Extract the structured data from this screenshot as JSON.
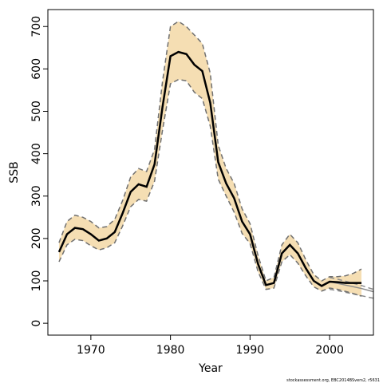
{
  "chart_data": {
    "type": "line",
    "xlabel": "Year",
    "ylabel": "SSB",
    "footnote": "stockassessment.org, EBC2014BSvers2, r5631",
    "x": [
      1966,
      1967,
      1968,
      1969,
      1970,
      1971,
      1972,
      1973,
      1974,
      1975,
      1976,
      1977,
      1978,
      1979,
      1980,
      1981,
      1982,
      1983,
      1984,
      1985,
      1986,
      1987,
      1988,
      1989,
      1990,
      1991,
      1992,
      1993,
      1994,
      1995,
      1996,
      1997,
      1998,
      1999,
      2000,
      2001,
      2002,
      2003,
      2004
    ],
    "series": [
      {
        "color": "#000000",
        "values": [
          168,
          210,
          225,
          222,
          210,
          195,
          200,
          215,
          260,
          310,
          328,
          322,
          375,
          510,
          630,
          640,
          635,
          610,
          595,
          520,
          380,
          330,
          295,
          240,
          210,
          140,
          90,
          95,
          165,
          185,
          165,
          130,
          100,
          88,
          98,
          97,
          95,
          95,
          95
        ]
      }
    ],
    "band": {
      "color": "#f5deb3",
      "line_color": "#707070",
      "upper": [
        190,
        240,
        255,
        250,
        240,
        225,
        228,
        245,
        290,
        345,
        365,
        358,
        410,
        570,
        700,
        712,
        700,
        680,
        660,
        590,
        420,
        365,
        330,
        270,
        235,
        160,
        100,
        108,
        185,
        210,
        190,
        150,
        115,
        100,
        110,
        110,
        112,
        118,
        128
      ],
      "lower": [
        145,
        185,
        198,
        195,
        183,
        173,
        178,
        190,
        230,
        275,
        292,
        288,
        335,
        455,
        565,
        575,
        572,
        545,
        530,
        465,
        340,
        300,
        262,
        212,
        188,
        122,
        80,
        83,
        145,
        162,
        142,
        112,
        86,
        76,
        83,
        80,
        75,
        70,
        64
      ]
    },
    "retro": {
      "color": "#8c8c8c",
      "x": [
        2000,
        2001,
        2002,
        2003,
        2004,
        2005,
        2006
      ],
      "values": [
        98,
        94,
        90,
        86,
        82,
        77,
        72
      ],
      "upper": [
        108,
        104,
        99,
        94,
        89,
        83,
        77
      ],
      "lower": [
        80,
        77,
        73,
        69,
        65,
        61,
        57
      ]
    },
    "xlim": [
      1964.6,
      2005.5
    ],
    "ylim": [
      -28,
      740
    ],
    "xticks": [
      1970,
      1980,
      1990,
      2000
    ],
    "yticks": [
      0,
      100,
      200,
      300,
      400,
      500,
      600,
      700
    ]
  }
}
